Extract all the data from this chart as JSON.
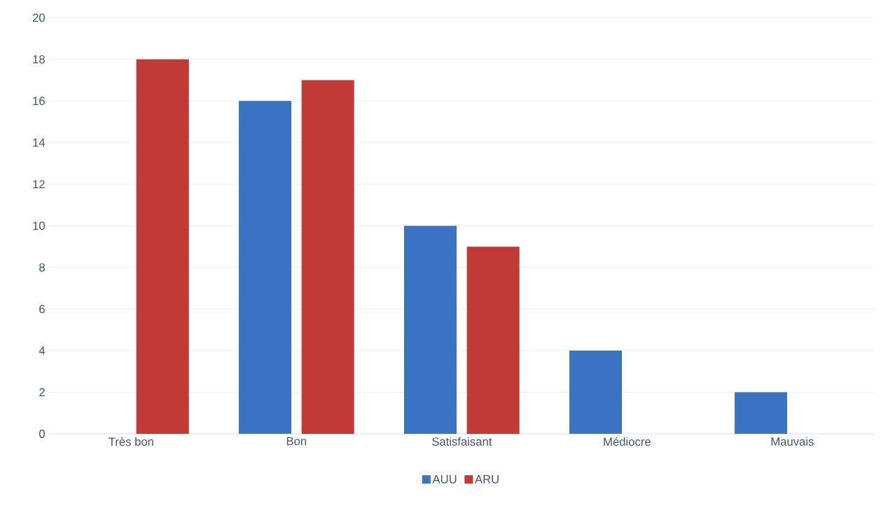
{
  "chart_data": {
    "type": "bar",
    "categories": [
      "Très bon",
      "Bon",
      "Satisfaisant",
      "Médiocre",
      "Mauvais"
    ],
    "series": [
      {
        "name": "AUU",
        "color": "#3a74c2",
        "values": [
          0,
          16,
          10,
          4,
          2
        ]
      },
      {
        "name": "ARU",
        "color": "#c23a36",
        "values": [
          18,
          17,
          9,
          0,
          0
        ]
      }
    ],
    "ylim": [
      0,
      20
    ],
    "yticks": [
      0,
      2,
      4,
      6,
      8,
      10,
      12,
      14,
      16,
      18,
      20
    ],
    "grid": "y",
    "legend": "bottom"
  }
}
